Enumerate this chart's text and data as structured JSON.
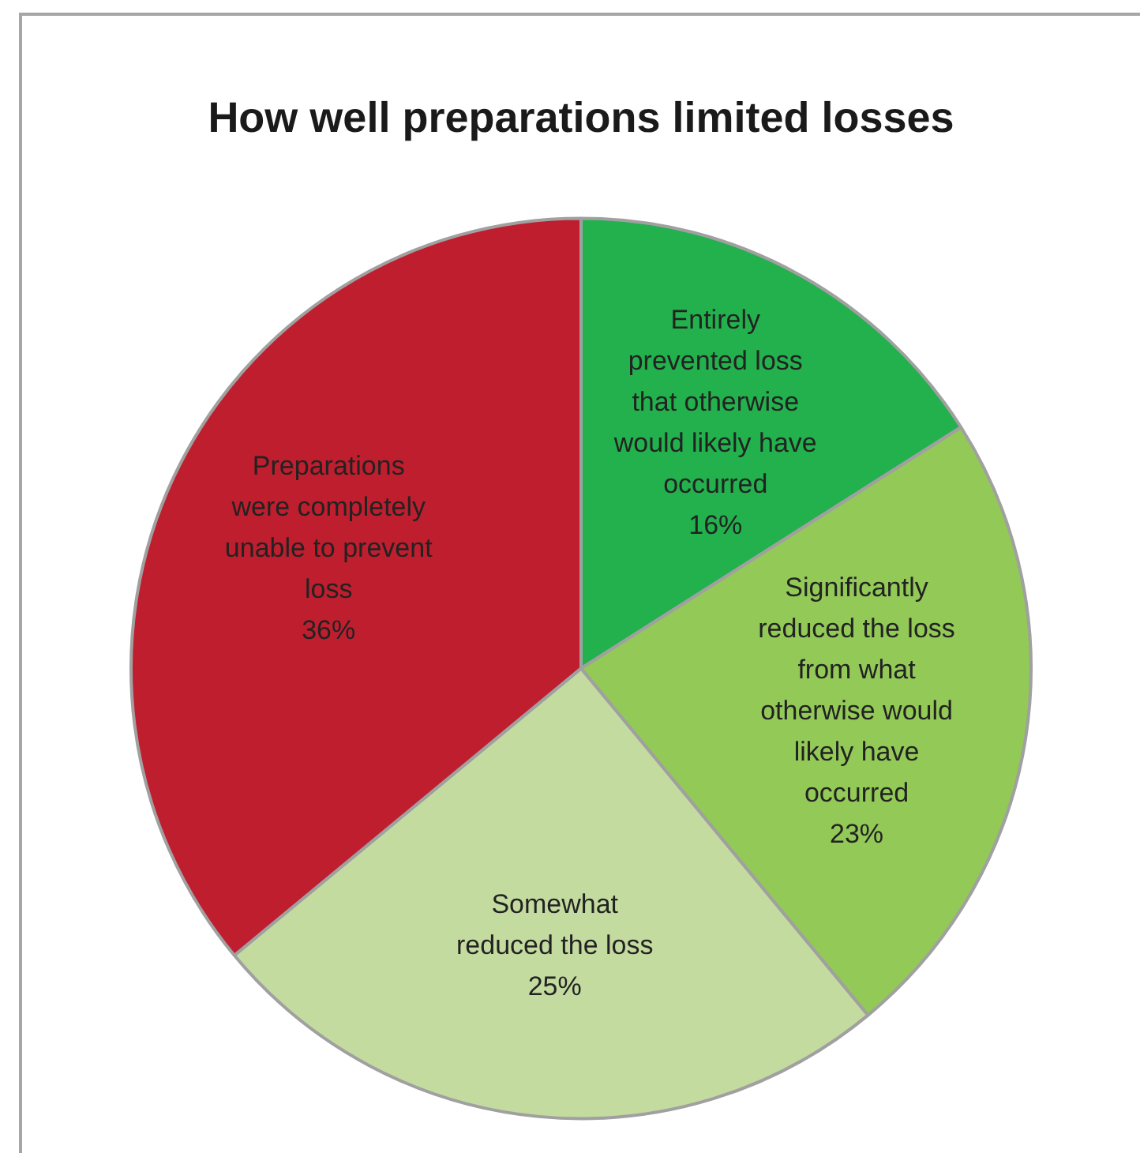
{
  "chart_data": {
    "type": "pie",
    "title": "How well preparations limited losses",
    "categories": [
      "Entirely prevented loss that otherwise would likely have occurred",
      "Significantly reduced the loss from what otherwise would likely have occurred",
      "Somewhat reduced the loss",
      "Preparations were completely unable to prevent loss"
    ],
    "values": [
      16,
      23,
      25,
      36
    ],
    "value_labels": [
      "16%",
      "23%",
      "25%",
      "36%"
    ],
    "colors": [
      "#22b14c",
      "#92c957",
      "#c4dba0",
      "#be1e2d"
    ],
    "legend": false
  }
}
